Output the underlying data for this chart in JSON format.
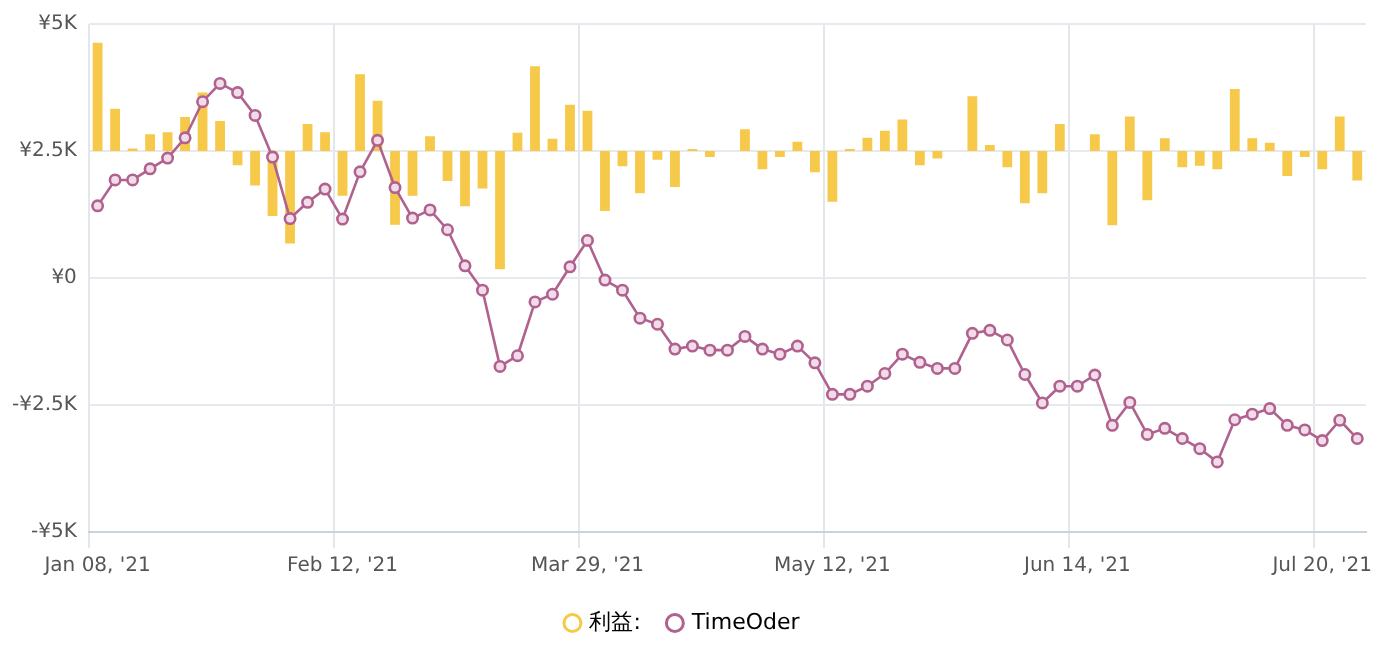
{
  "chart_data": {
    "type": "bar",
    "categories": [
      "Jan 08, '21",
      null,
      null,
      null,
      null,
      null,
      null,
      null,
      null,
      null,
      null,
      null,
      null,
      null,
      "Feb 12, '21",
      null,
      null,
      null,
      null,
      null,
      null,
      null,
      null,
      null,
      null,
      null,
      null,
      null,
      "Mar 29, '21",
      null,
      null,
      null,
      null,
      null,
      null,
      null,
      null,
      null,
      null,
      null,
      null,
      null,
      "May 12, '21",
      null,
      null,
      null,
      null,
      null,
      null,
      null,
      null,
      null,
      null,
      null,
      null,
      null,
      "Jun 14, '21",
      null,
      null,
      null,
      null,
      null,
      null,
      null,
      null,
      null,
      null,
      null,
      null,
      null,
      "Jul 20, '21",
      null,
      null
    ],
    "series": [
      {
        "name": "利益:",
        "color": "#f6c94a",
        "base": [
          2500,
          2500,
          2500,
          2500,
          2500,
          2500,
          2500,
          2500,
          2500,
          2500,
          2500,
          2500,
          2500,
          2500,
          2500,
          2500,
          2500,
          2500,
          2500,
          2500,
          2500,
          2500,
          2500,
          2500,
          2500,
          2500,
          2500,
          2500,
          2500,
          2500,
          2500,
          2500,
          2500,
          2500,
          2500,
          2500,
          null,
          2500,
          2500,
          2500,
          2500,
          2500,
          2500,
          2500,
          2500,
          2500,
          2500,
          2500,
          2500,
          null,
          2500,
          2500,
          2500,
          2500,
          2500,
          2500,
          null,
          2500,
          2500,
          2500,
          2500,
          2500,
          2500,
          2500,
          2500,
          2500,
          2500,
          2500,
          2500,
          2500,
          2500,
          2500,
          2500
        ],
        "values": [
          2130,
          830,
          50,
          330,
          370,
          670,
          1150,
          590,
          -280,
          -680,
          -1280,
          -1820,
          530,
          370,
          -880,
          1510,
          990,
          -1450,
          -880,
          290,
          -590,
          -1090,
          -740,
          -2330,
          360,
          1670,
          240,
          910,
          790,
          -1180,
          -300,
          -830,
          -170,
          -710,
          40,
          -120,
          null,
          430,
          -360,
          -120,
          180,
          -420,
          -1000,
          40,
          260,
          400,
          620,
          -280,
          -150,
          null,
          1080,
          120,
          -320,
          -1030,
          -830,
          530,
          null,
          330,
          -1460,
          680,
          -970,
          250,
          -320,
          -290,
          -360,
          1220,
          250,
          160,
          -490,
          -120,
          -360,
          680,
          -580
        ]
      },
      {
        "name": "TimeOder",
        "type": "line",
        "color": "#b0628f",
        "values": [
          1420,
          1930,
          1930,
          2150,
          2360,
          2760,
          3470,
          3830,
          3650,
          3200,
          2380,
          1170,
          1490,
          1750,
          1160,
          2090,
          2710,
          1780,
          1180,
          1340,
          950,
          240,
          -240,
          -1740,
          -1530,
          -470,
          -320,
          220,
          740,
          -40,
          -240,
          -790,
          -910,
          -1400,
          -1340,
          -1420,
          -1420,
          -1150,
          -1400,
          -1500,
          -1340,
          -1670,
          -2290,
          -2290,
          -2130,
          -1880,
          -1500,
          -1660,
          -1780,
          -1780,
          -1090,
          -1030,
          -1220,
          -1900,
          -2460,
          -2130,
          -2130,
          -1910,
          -2900,
          -2450,
          -3080,
          -2960,
          -3160,
          -3360,
          -3620,
          -2790,
          -2680,
          -2570,
          -2900,
          -2990,
          -3200,
          -2800,
          -3160
        ]
      }
    ],
    "ylim": [
      -5000,
      5000
    ],
    "yticks": [
      {
        "value": -5000,
        "label": "-¥5K"
      },
      {
        "value": -2500,
        "label": "-¥2.5K"
      },
      {
        "value": 0,
        "label": "¥0"
      },
      {
        "value": 2500,
        "label": "¥2.5K"
      },
      {
        "value": 5000,
        "label": "¥5K"
      }
    ],
    "grid": true,
    "legend": "bottom",
    "marker": "circle",
    "line_style": "solid"
  }
}
